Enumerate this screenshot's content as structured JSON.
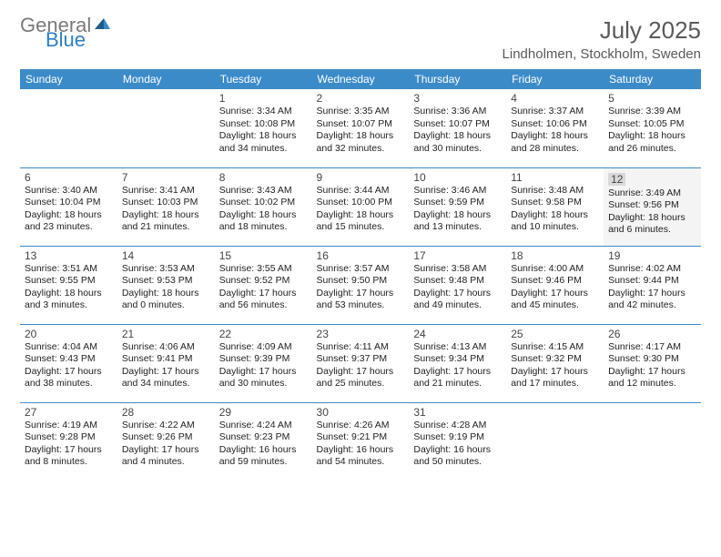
{
  "brand": {
    "general": "General",
    "blue": "Blue"
  },
  "header": {
    "title": "July 2025",
    "location": "Lindholmen, Stockholm, Sweden"
  },
  "colors": {
    "header_bg": "#3b8bc9",
    "header_text": "#ffffff",
    "border": "#3b8bc9",
    "logo_gray": "#7a7a7a",
    "logo_blue": "#2d7fc1",
    "text": "#222222",
    "today_bg": "#f4f4f4",
    "today_num_bg": "#d9d9d9"
  },
  "weekdays": [
    "Sunday",
    "Monday",
    "Tuesday",
    "Wednesday",
    "Thursday",
    "Friday",
    "Saturday"
  ],
  "today_index": 12,
  "grid": {
    "first_weekday": 2,
    "days_in_month": 31
  },
  "days": {
    "1": {
      "sunrise": "3:34 AM",
      "sunset": "10:08 PM",
      "daylight": "18 hours and 34 minutes."
    },
    "2": {
      "sunrise": "3:35 AM",
      "sunset": "10:07 PM",
      "daylight": "18 hours and 32 minutes."
    },
    "3": {
      "sunrise": "3:36 AM",
      "sunset": "10:07 PM",
      "daylight": "18 hours and 30 minutes."
    },
    "4": {
      "sunrise": "3:37 AM",
      "sunset": "10:06 PM",
      "daylight": "18 hours and 28 minutes."
    },
    "5": {
      "sunrise": "3:39 AM",
      "sunset": "10:05 PM",
      "daylight": "18 hours and 26 minutes."
    },
    "6": {
      "sunrise": "3:40 AM",
      "sunset": "10:04 PM",
      "daylight": "18 hours and 23 minutes."
    },
    "7": {
      "sunrise": "3:41 AM",
      "sunset": "10:03 PM",
      "daylight": "18 hours and 21 minutes."
    },
    "8": {
      "sunrise": "3:43 AM",
      "sunset": "10:02 PM",
      "daylight": "18 hours and 18 minutes."
    },
    "9": {
      "sunrise": "3:44 AM",
      "sunset": "10:00 PM",
      "daylight": "18 hours and 15 minutes."
    },
    "10": {
      "sunrise": "3:46 AM",
      "sunset": "9:59 PM",
      "daylight": "18 hours and 13 minutes."
    },
    "11": {
      "sunrise": "3:48 AM",
      "sunset": "9:58 PM",
      "daylight": "18 hours and 10 minutes."
    },
    "12": {
      "sunrise": "3:49 AM",
      "sunset": "9:56 PM",
      "daylight": "18 hours and 6 minutes."
    },
    "13": {
      "sunrise": "3:51 AM",
      "sunset": "9:55 PM",
      "daylight": "18 hours and 3 minutes."
    },
    "14": {
      "sunrise": "3:53 AM",
      "sunset": "9:53 PM",
      "daylight": "18 hours and 0 minutes."
    },
    "15": {
      "sunrise": "3:55 AM",
      "sunset": "9:52 PM",
      "daylight": "17 hours and 56 minutes."
    },
    "16": {
      "sunrise": "3:57 AM",
      "sunset": "9:50 PM",
      "daylight": "17 hours and 53 minutes."
    },
    "17": {
      "sunrise": "3:58 AM",
      "sunset": "9:48 PM",
      "daylight": "17 hours and 49 minutes."
    },
    "18": {
      "sunrise": "4:00 AM",
      "sunset": "9:46 PM",
      "daylight": "17 hours and 45 minutes."
    },
    "19": {
      "sunrise": "4:02 AM",
      "sunset": "9:44 PM",
      "daylight": "17 hours and 42 minutes."
    },
    "20": {
      "sunrise": "4:04 AM",
      "sunset": "9:43 PM",
      "daylight": "17 hours and 38 minutes."
    },
    "21": {
      "sunrise": "4:06 AM",
      "sunset": "9:41 PM",
      "daylight": "17 hours and 34 minutes."
    },
    "22": {
      "sunrise": "4:09 AM",
      "sunset": "9:39 PM",
      "daylight": "17 hours and 30 minutes."
    },
    "23": {
      "sunrise": "4:11 AM",
      "sunset": "9:37 PM",
      "daylight": "17 hours and 25 minutes."
    },
    "24": {
      "sunrise": "4:13 AM",
      "sunset": "9:34 PM",
      "daylight": "17 hours and 21 minutes."
    },
    "25": {
      "sunrise": "4:15 AM",
      "sunset": "9:32 PM",
      "daylight": "17 hours and 17 minutes."
    },
    "26": {
      "sunrise": "4:17 AM",
      "sunset": "9:30 PM",
      "daylight": "17 hours and 12 minutes."
    },
    "27": {
      "sunrise": "4:19 AM",
      "sunset": "9:28 PM",
      "daylight": "17 hours and 8 minutes."
    },
    "28": {
      "sunrise": "4:22 AM",
      "sunset": "9:26 PM",
      "daylight": "17 hours and 4 minutes."
    },
    "29": {
      "sunrise": "4:24 AM",
      "sunset": "9:23 PM",
      "daylight": "16 hours and 59 minutes."
    },
    "30": {
      "sunrise": "4:26 AM",
      "sunset": "9:21 PM",
      "daylight": "16 hours and 54 minutes."
    },
    "31": {
      "sunrise": "4:28 AM",
      "sunset": "9:19 PM",
      "daylight": "16 hours and 50 minutes."
    }
  },
  "labels": {
    "sunrise": "Sunrise:",
    "sunset": "Sunset:",
    "daylight": "Daylight:"
  }
}
